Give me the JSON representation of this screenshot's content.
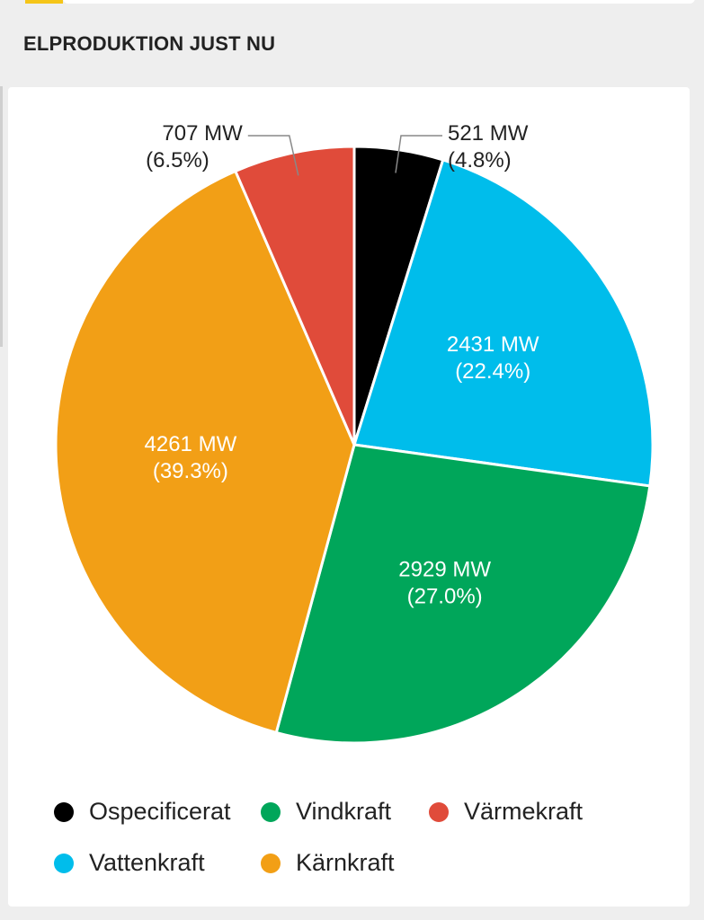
{
  "header": {
    "section_title": "ELPRODUKTION JUST NU"
  },
  "colors": {
    "Ospecificerat": "#000000",
    "Vattenkraft": "#00bdeb",
    "Vindkraft": "#00a65a",
    "Kärnkraft": "#f29f16",
    "Värmekraft": "#e04b3a",
    "accent": "#f5c518"
  },
  "chart_data": {
    "type": "pie",
    "unit": "MW",
    "slices": [
      {
        "name": "Ospecificerat",
        "value": 521,
        "percent": 4.8,
        "value_label": "521 MW",
        "percent_label": "(4.8%)",
        "label_position": "outside"
      },
      {
        "name": "Vattenkraft",
        "value": 2431,
        "percent": 22.4,
        "value_label": "2431 MW",
        "percent_label": "(22.4%)",
        "label_position": "inside"
      },
      {
        "name": "Vindkraft",
        "value": 2929,
        "percent": 27.0,
        "value_label": "2929 MW",
        "percent_label": "(27.0%)",
        "label_position": "inside"
      },
      {
        "name": "Kärnkraft",
        "value": 4261,
        "percent": 39.3,
        "value_label": "4261 MW",
        "percent_label": "(39.3%)",
        "label_position": "inside"
      },
      {
        "name": "Värmekraft",
        "value": 707,
        "percent": 6.5,
        "value_label": "707 MW",
        "percent_label": "(6.5%)",
        "label_position": "outside"
      }
    ],
    "legend": {
      "placement": "bottom",
      "rows": [
        [
          "Ospecificerat",
          "Vindkraft",
          "Värmekraft"
        ],
        [
          "Vattenkraft",
          "Kärnkraft"
        ]
      ]
    }
  }
}
